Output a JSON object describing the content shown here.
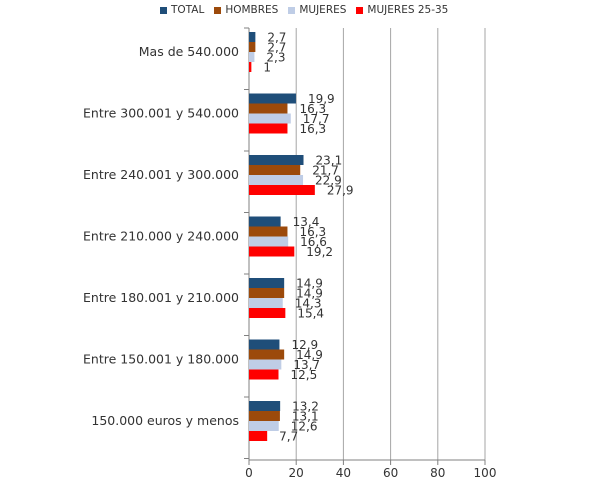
{
  "chart_data": {
    "type": "bar",
    "orientation": "horizontal",
    "categories": [
      "Mas de 540.000",
      "Entre 300.001 y 540.000",
      "Entre 240.001 y 300.000",
      "Entre 210.000 y 240.000",
      "Entre 180.001 y 210.000",
      "Entre 150.001 y 180.000",
      "150.000 euros y menos"
    ],
    "series": [
      {
        "name": "TOTAL",
        "color": "#1f4e79",
        "values": [
          2.7,
          19.9,
          23.1,
          13.4,
          14.9,
          12.9,
          13.2
        ],
        "labels": [
          "2,7",
          "19,9",
          "23,1",
          "13,4",
          "14,9",
          "12,9",
          "13,2"
        ]
      },
      {
        "name": "HOMBRES",
        "color": "#9c4a0b",
        "values": [
          2.7,
          16.3,
          21.7,
          16.3,
          14.9,
          14.9,
          13.1
        ],
        "labels": [
          "2,7",
          "16,3",
          "21,7",
          "16,3",
          "14,9",
          "14,9",
          "13,1"
        ]
      },
      {
        "name": "MUJERES",
        "color": "#bfcde6",
        "values": [
          2.3,
          17.7,
          22.9,
          16.6,
          14.3,
          13.7,
          12.6
        ],
        "labels": [
          "2,3",
          "17,7",
          "22,9",
          "16,6",
          "14,3",
          "13,7",
          "12,6"
        ]
      },
      {
        "name": "MUJERES 25-35",
        "color": "#ff0000",
        "values": [
          1,
          16.3,
          27.9,
          19.2,
          15.4,
          12.5,
          7.7
        ],
        "labels": [
          "1",
          "16,3",
          "27,9",
          "19,2",
          "15,4",
          "12,5",
          "7,7"
        ]
      }
    ],
    "xlim": [
      0,
      100
    ],
    "xticks": [
      "0",
      "20",
      "40",
      "60",
      "80",
      "100"
    ],
    "grid": true,
    "legend_position": "top"
  }
}
